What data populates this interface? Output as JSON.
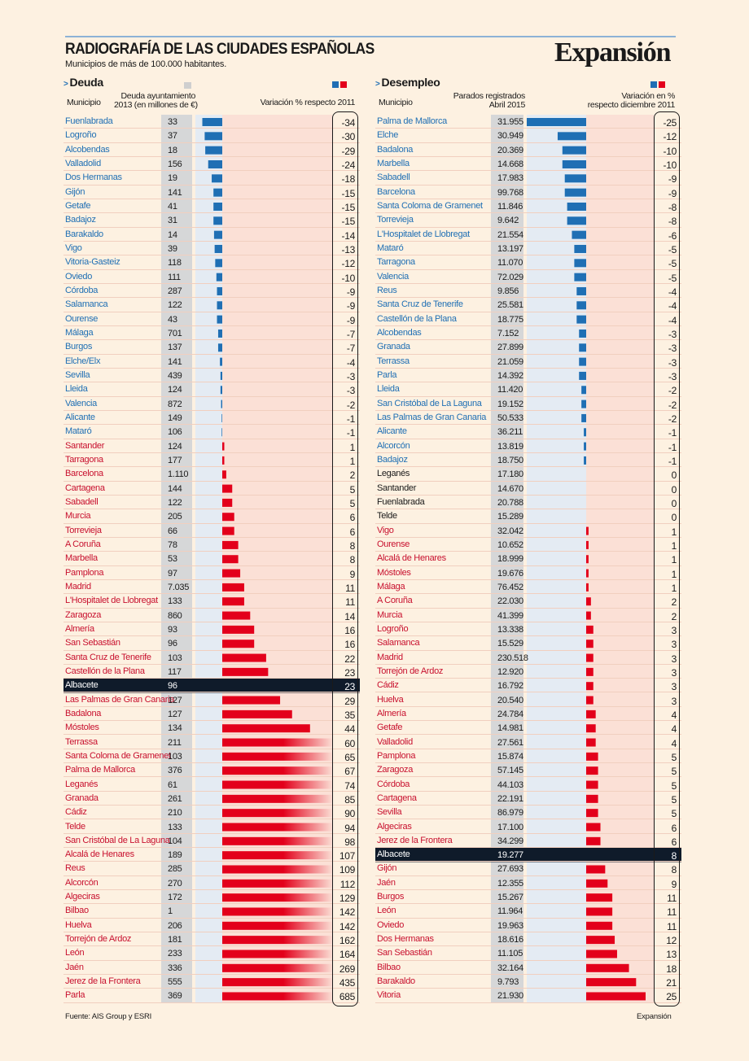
{
  "title": "RADIOGRAFÍA DE LAS CIUDADES ESPAÑOLAS",
  "subtitle": "Municipios de más de 100.000 habitantes.",
  "brand": "Expansión",
  "source": "Fuente: AIS Group y ESRI",
  "credit": "Expansión",
  "colors": {
    "negative": "#1f6fb4",
    "positive": "#e3001b",
    "highlight": "#37e6d9",
    "name_negative": "#1f6fb4",
    "name_positive": "#c8102e"
  },
  "chart_data": [
    {
      "type": "bar",
      "section": "Deuda",
      "col_municipio": "Municipio",
      "col_value": "Deuda ayuntamiento\n2013 (en millones de €)",
      "col_change": "Variación % respecto 2011",
      "highlight": "Albacete",
      "rows": [
        {
          "name": "Fuenlabrada",
          "value": "33",
          "change": -34
        },
        {
          "name": "Logroño",
          "value": "37",
          "change": -30
        },
        {
          "name": "Alcobendas",
          "value": "18",
          "change": -29
        },
        {
          "name": "Valladolid",
          "value": "156",
          "change": -24
        },
        {
          "name": "Dos Hermanas",
          "value": "19",
          "change": -18
        },
        {
          "name": "Gijón",
          "value": "141",
          "change": -15
        },
        {
          "name": "Getafe",
          "value": "41",
          "change": -15
        },
        {
          "name": "Badajoz",
          "value": "31",
          "change": -15
        },
        {
          "name": "Barakaldo",
          "value": "14",
          "change": -14
        },
        {
          "name": "Vigo",
          "value": "39",
          "change": -13
        },
        {
          "name": "Vitoria-Gasteiz",
          "value": "118",
          "change": -12
        },
        {
          "name": "Oviedo",
          "value": "111",
          "change": -10
        },
        {
          "name": "Córdoba",
          "value": "287",
          "change": -9
        },
        {
          "name": "Salamanca",
          "value": "122",
          "change": -9
        },
        {
          "name": "Ourense",
          "value": "43",
          "change": -9
        },
        {
          "name": "Málaga",
          "value": "701",
          "change": -7
        },
        {
          "name": "Burgos",
          "value": "137",
          "change": -7
        },
        {
          "name": "Elche/Elx",
          "value": "141",
          "change": -4
        },
        {
          "name": "Sevilla",
          "value": "439",
          "change": -3
        },
        {
          "name": "Lleida",
          "value": "124",
          "change": -3
        },
        {
          "name": "Valencia",
          "value": "872",
          "change": -2
        },
        {
          "name": "Alicante",
          "value": "149",
          "change": -1
        },
        {
          "name": "Mataró",
          "value": "106",
          "change": -1
        },
        {
          "name": "Santander",
          "value": "124",
          "change": 1
        },
        {
          "name": "Tarragona",
          "value": "177",
          "change": 1
        },
        {
          "name": "Barcelona",
          "value": "1.110",
          "change": 2
        },
        {
          "name": "Cartagena",
          "value": "144",
          "change": 5
        },
        {
          "name": "Sabadell",
          "value": "122",
          "change": 5
        },
        {
          "name": "Murcia",
          "value": "205",
          "change": 6
        },
        {
          "name": "Torrevieja",
          "value": "66",
          "change": 6
        },
        {
          "name": "A Coruña",
          "value": "78",
          "change": 8
        },
        {
          "name": "Marbella",
          "value": "53",
          "change": 8
        },
        {
          "name": "Pamplona",
          "value": "97",
          "change": 9
        },
        {
          "name": "Madrid",
          "value": "7.035",
          "change": 11
        },
        {
          "name": "L'Hospitalet de Llobregat",
          "value": "133",
          "change": 11
        },
        {
          "name": "Zaragoza",
          "value": "860",
          "change": 14
        },
        {
          "name": "Almería",
          "value": "93",
          "change": 16
        },
        {
          "name": "San Sebastián",
          "value": "96",
          "change": 16
        },
        {
          "name": "Santa Cruz de Tenerife",
          "value": "103",
          "change": 22
        },
        {
          "name": "Castellón de la Plana",
          "value": "117",
          "change": 23
        },
        {
          "name": "Albacete",
          "value": "96",
          "change": 23
        },
        {
          "name": "Las Palmas de Gran Canaria",
          "value": "127",
          "change": 29
        },
        {
          "name": "Badalona",
          "value": "127",
          "change": 35
        },
        {
          "name": "Móstoles",
          "value": "134",
          "change": 44
        },
        {
          "name": "Terrassa",
          "value": "211",
          "change": 60
        },
        {
          "name": "Santa Coloma de Gramenet",
          "value": "103",
          "change": 65
        },
        {
          "name": "Palma de Mallorca",
          "value": "376",
          "change": 67
        },
        {
          "name": "Leganés",
          "value": "61",
          "change": 74
        },
        {
          "name": "Granada",
          "value": "261",
          "change": 85
        },
        {
          "name": "Cádiz",
          "value": "210",
          "change": 90
        },
        {
          "name": "Telde",
          "value": "133",
          "change": 94
        },
        {
          "name": "San Cristóbal de La Laguna",
          "value": "104",
          "change": 98
        },
        {
          "name": "Alcalá de Henares",
          "value": "189",
          "change": 107
        },
        {
          "name": "Reus",
          "value": "285",
          "change": 109
        },
        {
          "name": "Alcorcón",
          "value": "270",
          "change": 112
        },
        {
          "name": "Algeciras",
          "value": "172",
          "change": 129
        },
        {
          "name": "Bilbao",
          "value": "1",
          "change": 142
        },
        {
          "name": "Huelva",
          "value": "206",
          "change": 142
        },
        {
          "name": "Torrejón de Ardoz",
          "value": "181",
          "change": 162
        },
        {
          "name": "León",
          "value": "233",
          "change": 164
        },
        {
          "name": "Jaén",
          "value": "336",
          "change": 269
        },
        {
          "name": "Jerez de la Frontera",
          "value": "555",
          "change": 435
        },
        {
          "name": "Parla",
          "value": "369",
          "change": 685
        }
      ]
    },
    {
      "type": "bar",
      "section": "Desempleo",
      "col_municipio": "Municipio",
      "col_value": "Parados registrados\nAbril 2015",
      "col_change": "Variación en %\nrespecto diciembre 2011",
      "highlight": "Albacete",
      "rows": [
        {
          "name": "Palma de Mallorca",
          "value": "31.955",
          "change": -25
        },
        {
          "name": "Elche",
          "value": "30.949",
          "change": -12
        },
        {
          "name": "Badalona",
          "value": "20.369",
          "change": -10
        },
        {
          "name": "Marbella",
          "value": "14.668",
          "change": -10
        },
        {
          "name": "Sabadell",
          "value": "17.983",
          "change": -9
        },
        {
          "name": "Barcelona",
          "value": "99.768",
          "change": -9
        },
        {
          "name": "Santa Coloma de Gramenet",
          "value": "11.846",
          "change": -8
        },
        {
          "name": "Torrevieja",
          "value": "9.642",
          "change": -8
        },
        {
          "name": "L'Hospitalet de Llobregat",
          "value": "21.554",
          "change": -6
        },
        {
          "name": "Mataró",
          "value": "13.197",
          "change": -5
        },
        {
          "name": "Tarragona",
          "value": "11.070",
          "change": -5
        },
        {
          "name": "Valencia",
          "value": "72.029",
          "change": -5
        },
        {
          "name": "Reus",
          "value": "9.856",
          "change": -4
        },
        {
          "name": "Santa Cruz de Tenerife",
          "value": "25.581",
          "change": -4
        },
        {
          "name": "Castellón de la Plana",
          "value": "18.775",
          "change": -4
        },
        {
          "name": "Alcobendas",
          "value": "7.152",
          "change": -3
        },
        {
          "name": "Granada",
          "value": "27.899",
          "change": -3
        },
        {
          "name": "Terrassa",
          "value": "21.059",
          "change": -3
        },
        {
          "name": "Parla",
          "value": "14.392",
          "change": -3
        },
        {
          "name": "Lleida",
          "value": "11.420",
          "change": -2
        },
        {
          "name": "San Cristóbal de La Laguna",
          "value": "19.152",
          "change": -2
        },
        {
          "name": "Las Palmas de Gran Canaria",
          "value": "50.533",
          "change": -2
        },
        {
          "name": "Alicante",
          "value": "36.211",
          "change": -1
        },
        {
          "name": "Alcorcón",
          "value": "13.819",
          "change": -1
        },
        {
          "name": "Badajoz",
          "value": "18.750",
          "change": -1
        },
        {
          "name": "Leganés",
          "value": "17.180",
          "change": 0
        },
        {
          "name": "Santander",
          "value": "14.670",
          "change": 0
        },
        {
          "name": "Fuenlabrada",
          "value": "20.788",
          "change": 0
        },
        {
          "name": "Telde",
          "value": "15.289",
          "change": 0
        },
        {
          "name": "Vigo",
          "value": "32.042",
          "change": 1
        },
        {
          "name": "Ourense",
          "value": "10.652",
          "change": 1
        },
        {
          "name": "Alcalá de Henares",
          "value": "18.999",
          "change": 1
        },
        {
          "name": "Móstoles",
          "value": "19.676",
          "change": 1
        },
        {
          "name": "Málaga",
          "value": "76.452",
          "change": 1
        },
        {
          "name": "A Coruña",
          "value": "22.030",
          "change": 2
        },
        {
          "name": "Murcia",
          "value": "41.399",
          "change": 2
        },
        {
          "name": "Logroño",
          "value": "13.338",
          "change": 3
        },
        {
          "name": "Salamanca",
          "value": "15.529",
          "change": 3
        },
        {
          "name": "Madrid",
          "value": "230.518",
          "change": 3
        },
        {
          "name": "Torrejón de Ardoz",
          "value": "12.920",
          "change": 3
        },
        {
          "name": "Cádiz",
          "value": "16.792",
          "change": 3
        },
        {
          "name": "Huelva",
          "value": "20.540",
          "change": 3
        },
        {
          "name": "Almería",
          "value": "24.784",
          "change": 4
        },
        {
          "name": "Getafe",
          "value": "14.981",
          "change": 4
        },
        {
          "name": "Valladolid",
          "value": "27.561",
          "change": 4
        },
        {
          "name": "Pamplona",
          "value": "15.874",
          "change": 5
        },
        {
          "name": "Zaragoza",
          "value": "57.145",
          "change": 5
        },
        {
          "name": "Córdoba",
          "value": "44.103",
          "change": 5
        },
        {
          "name": "Cartagena",
          "value": "22.191",
          "change": 5
        },
        {
          "name": "Sevilla",
          "value": "86.979",
          "change": 5
        },
        {
          "name": "Algeciras",
          "value": "17.100",
          "change": 6
        },
        {
          "name": "Jerez de la Frontera",
          "value": "34.299",
          "change": 6
        },
        {
          "name": "Albacete",
          "value": "19.277",
          "change": 8
        },
        {
          "name": "Gijón",
          "value": "27.693",
          "change": 8
        },
        {
          "name": "Jaén",
          "value": "12.355",
          "change": 9
        },
        {
          "name": "Burgos",
          "value": "15.267",
          "change": 11
        },
        {
          "name": "León",
          "value": "11.964",
          "change": 11
        },
        {
          "name": "Oviedo",
          "value": "19.963",
          "change": 11
        },
        {
          "name": "Dos Hermanas",
          "value": "18.616",
          "change": 12
        },
        {
          "name": "San Sebastián",
          "value": "11.105",
          "change": 13
        },
        {
          "name": "Bilbao",
          "value": "32.164",
          "change": 18
        },
        {
          "name": "Barakaldo",
          "value": "9.793",
          "change": 21
        },
        {
          "name": "Vitoria",
          "value": "21.930",
          "change": 25
        }
      ]
    }
  ]
}
